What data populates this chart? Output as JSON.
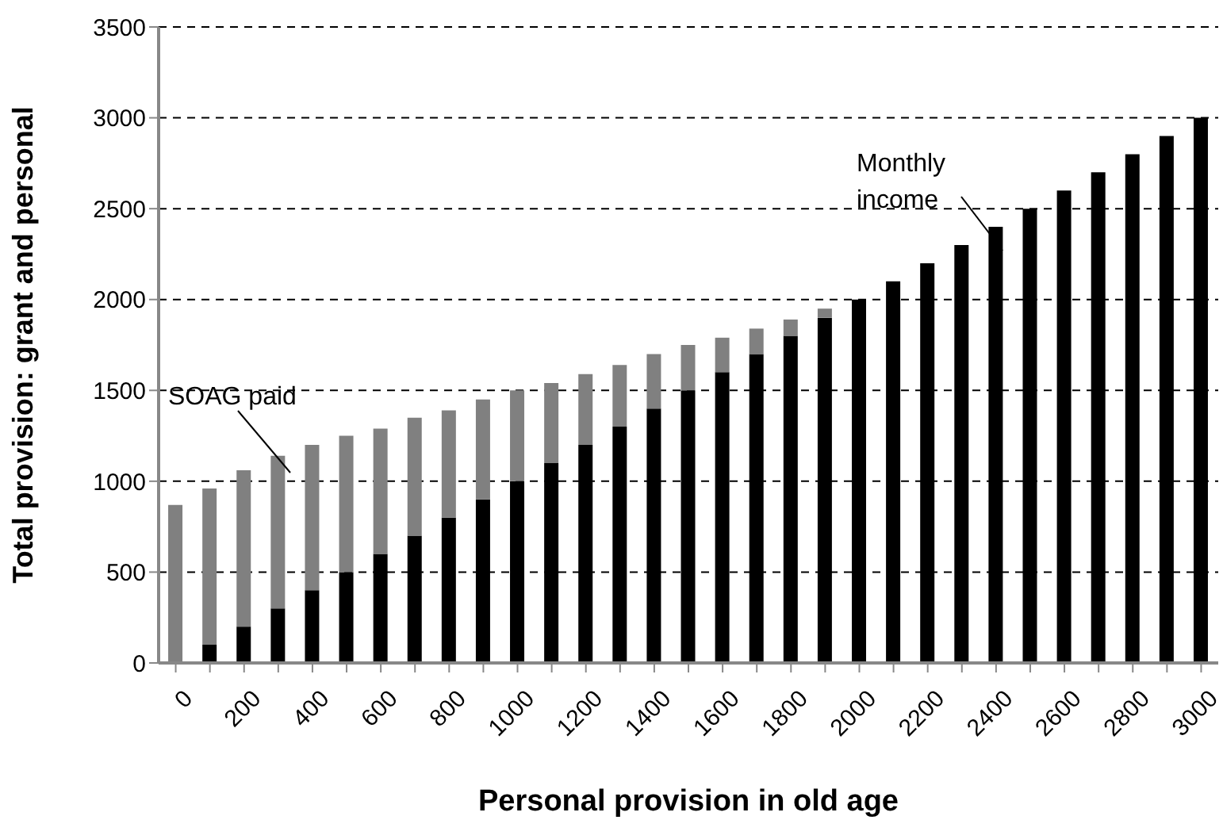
{
  "chart_data": {
    "type": "bar",
    "stacked": true,
    "xlabel": "Personal provision in old age",
    "ylabel": "Total provision: grant and personal",
    "categories": [
      "0",
      null,
      "200",
      null,
      "400",
      null,
      "600",
      null,
      "800",
      null,
      "1000",
      null,
      "1200",
      null,
      "1400",
      null,
      "1600",
      null,
      "1800",
      null,
      "2000",
      null,
      "2200",
      null,
      "2400",
      null,
      "2600",
      null,
      "2800",
      null,
      "3000"
    ],
    "series": [
      {
        "name": "Monthly income",
        "color": "#000000",
        "values": [
          0,
          100,
          200,
          300,
          400,
          500,
          600,
          700,
          800,
          900,
          1000,
          1100,
          1200,
          1300,
          1400,
          1500,
          1600,
          1700,
          1800,
          1900,
          2000,
          2100,
          2200,
          2300,
          2400,
          2500,
          2600,
          2700,
          2800,
          2900,
          3000
        ]
      },
      {
        "name": "SOAG paid",
        "color": "#808080",
        "values": [
          870,
          860,
          860,
          840,
          800,
          750,
          690,
          650,
          590,
          550,
          500,
          440,
          390,
          340,
          300,
          250,
          190,
          140,
          90,
          50,
          0,
          0,
          0,
          0,
          0,
          0,
          0,
          0,
          0,
          0,
          0
        ]
      }
    ],
    "ylim": [
      0,
      3500
    ],
    "yticks": [
      0,
      500,
      1000,
      1500,
      2000,
      2500,
      3000,
      3500
    ],
    "grid": "y"
  }
}
